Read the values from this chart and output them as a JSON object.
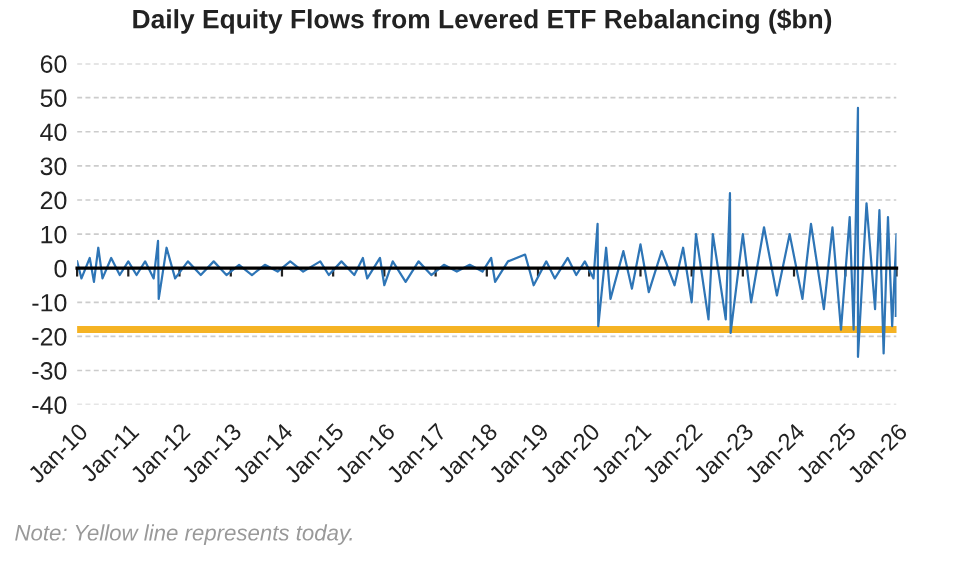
{
  "chart_data": {
    "type": "line",
    "title": "Daily Equity Flows from Levered ETF Rebalancing ($bn)",
    "x": [
      "2010-01",
      "2010-02",
      "2010-04",
      "2010-05",
      "2010-06",
      "2010-07",
      "2010-09",
      "2010-11",
      "2011-01",
      "2011-03",
      "2011-05",
      "2011-07",
      "2011-08",
      "2011-08-20",
      "2011-10",
      "2011-12",
      "2012-03",
      "2012-06",
      "2012-09",
      "2012-12",
      "2013-03",
      "2013-06",
      "2013-09",
      "2013-12",
      "2014-03",
      "2014-06",
      "2014-10",
      "2014-12",
      "2015-03",
      "2015-06",
      "2015-08",
      "2015-09",
      "2015-12",
      "2016-01",
      "2016-03",
      "2016-06",
      "2016-09",
      "2016-12",
      "2017-03",
      "2017-06",
      "2017-09",
      "2017-12",
      "2018-02",
      "2018-03",
      "2018-06",
      "2018-10",
      "2018-12",
      "2019-03",
      "2019-05",
      "2019-08",
      "2019-10",
      "2019-12",
      "2020-02",
      "2020-03",
      "2020-03-20",
      "2020-05",
      "2020-06",
      "2020-09",
      "2020-11",
      "2021-01",
      "2021-03",
      "2021-06",
      "2021-09",
      "2021-11",
      "2022-01",
      "2022-02",
      "2022-05",
      "2022-06",
      "2022-09",
      "2022-10",
      "2022-10-20",
      "2023-01",
      "2023-03",
      "2023-06",
      "2023-09",
      "2023-12",
      "2024-03",
      "2024-05",
      "2024-08",
      "2024-10",
      "2024-12",
      "2025-02",
      "2025-03",
      "2025-04",
      "2025-04-15",
      "2025-06",
      "2025-08",
      "2025-09",
      "2025-10",
      "2025-11",
      "2025-12",
      "2026-01",
      "2026-01-10"
    ],
    "series": [
      {
        "color": "#2e75b6",
        "values": [
          2,
          -3,
          3,
          -4,
          6,
          -3,
          3,
          -2,
          2,
          -2,
          2,
          -3,
          8,
          -9,
          6,
          -3,
          2,
          -2,
          2,
          -2,
          1,
          -2,
          1,
          -1,
          2,
          -1,
          2,
          -2,
          2,
          -2,
          3,
          -3,
          3,
          -5,
          2,
          -4,
          2,
          -2,
          1,
          -1,
          1,
          -1,
          3,
          -4,
          2,
          4,
          -5,
          2,
          -3,
          3,
          -2,
          2,
          -3,
          13,
          -17,
          6,
          -9,
          5,
          -6,
          7,
          -7,
          5,
          -5,
          6,
          -10,
          10,
          -15,
          10,
          -15,
          22,
          -19,
          10,
          -10,
          12,
          -8,
          10,
          -9,
          13,
          -12,
          12,
          -18,
          15,
          -18,
          47,
          -26,
          19,
          -12,
          17,
          -25,
          15,
          -17,
          10,
          -14
        ]
      }
    ],
    "xlim": [
      "2010-01",
      "2026-01-10"
    ],
    "xticks": [
      {
        "value": "2010-01",
        "label": "Jan-10"
      },
      {
        "value": "2011-01",
        "label": "Jan-11"
      },
      {
        "value": "2012-01",
        "label": "Jan-12"
      },
      {
        "value": "2013-01",
        "label": "Jan-13"
      },
      {
        "value": "2014-01",
        "label": "Jan-14"
      },
      {
        "value": "2015-01",
        "label": "Jan-15"
      },
      {
        "value": "2016-01",
        "label": "Jan-16"
      },
      {
        "value": "2017-01",
        "label": "Jan-17"
      },
      {
        "value": "2018-01",
        "label": "Jan-18"
      },
      {
        "value": "2019-01",
        "label": "Jan-19"
      },
      {
        "value": "2020-01",
        "label": "Jan-20"
      },
      {
        "value": "2021-01",
        "label": "Jan-21"
      },
      {
        "value": "2022-01",
        "label": "Jan-22"
      },
      {
        "value": "2023-01",
        "label": "Jan-23"
      },
      {
        "value": "2024-01",
        "label": "Jan-24"
      },
      {
        "value": "2025-01",
        "label": "Jan-25"
      },
      {
        "value": "2026-01",
        "label": "Jan-26"
      }
    ],
    "ylim": [
      -40,
      60
    ],
    "yticks": [
      -40,
      -30,
      -20,
      -10,
      0,
      10,
      20,
      30,
      40,
      50,
      60
    ],
    "ref_lines": [
      {
        "axis": "y",
        "value": -18,
        "color": "#f5b324"
      }
    ],
    "grid": "y",
    "marker": "none",
    "line_style": "solid",
    "annotations": [
      "Note: Yellow line represents today."
    ]
  }
}
